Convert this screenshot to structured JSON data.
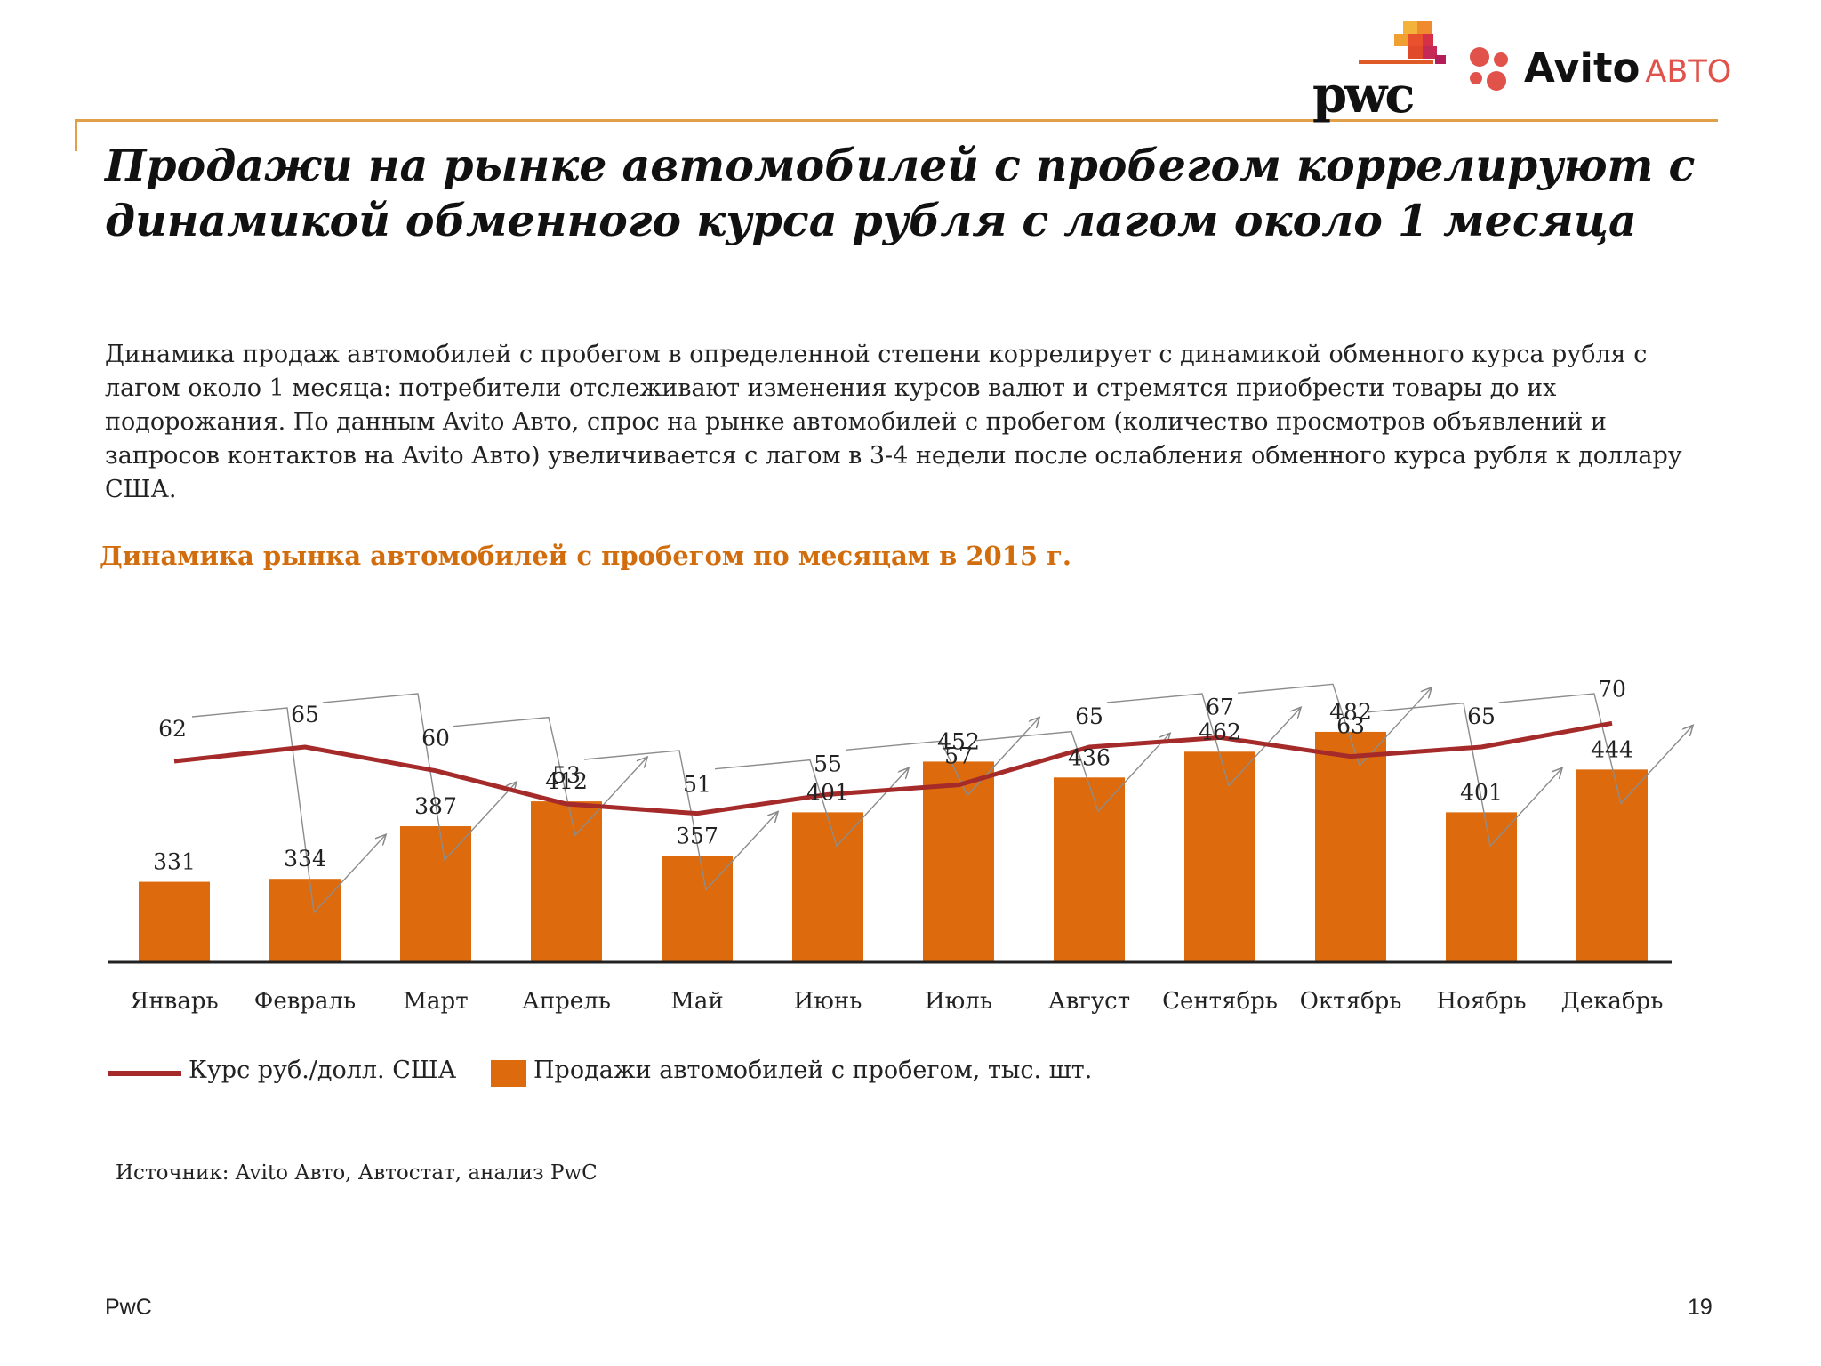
{
  "header": {
    "pwc_logo_text": "pwc",
    "avito_logo_text": "Avito",
    "avito_logo_suffix": "АВТО",
    "accent_color": "#e0a04a"
  },
  "title": "Продажи на рынке автомобилей с пробегом коррелируют с динамикой обменного курса рубля с лагом около 1 месяца",
  "body_text": "Динамика продаж автомобилей с пробегом в определенной степени коррелирует с динамикой обменного курса рубля с лагом около 1 месяца: потребители отслеживают изменения курсов валют и стремятся приобрести товары до их подорожания. По данным Avito Авто, спрос на рынке автомобилей с пробегом (количество просмотров объявлений и запросов контактов на Avito Авто) увеличивается с лагом в 3-4 недели после ослабления обменного курса рубля к доллару США.",
  "chart_data": {
    "type": "bar",
    "title": "Динамика рынка автомобилей с пробегом по месяцам в 2015 г.",
    "categories": [
      "Январь",
      "Февраль",
      "Март",
      "Апрель",
      "Май",
      "Июнь",
      "Июль",
      "Август",
      "Сентябрь",
      "Октябрь",
      "Ноябрь",
      "Декабрь"
    ],
    "series": [
      {
        "name": "Продажи автомобилей с пробегом, тыс. шт.",
        "type": "bar",
        "color": "#dd6a0c",
        "values": [
          331,
          334,
          387,
          412,
          357,
          401,
          452,
          436,
          462,
          482,
          401,
          444
        ],
        "ylim": [
          250,
          550
        ]
      },
      {
        "name": "Курс руб./долл. США",
        "type": "line",
        "color": "#a52a2a",
        "values": [
          62,
          65,
          60,
          53,
          51,
          55,
          57,
          65,
          67,
          63,
          65,
          70
        ],
        "ylim": [
          20,
          80
        ]
      }
    ],
    "annotations": "gray arrows linking each month's exchange rate to the following month's sales",
    "legend_position": "bottom-left",
    "grid": false
  },
  "legend": {
    "line_label": "Курс руб./долл. США",
    "bar_label": "Продажи автомобилей с пробегом, тыс. шт."
  },
  "source": "Источник: Avito Авто, Автостат, анализ PwC",
  "footer": {
    "left": "PwC",
    "page": "19"
  }
}
